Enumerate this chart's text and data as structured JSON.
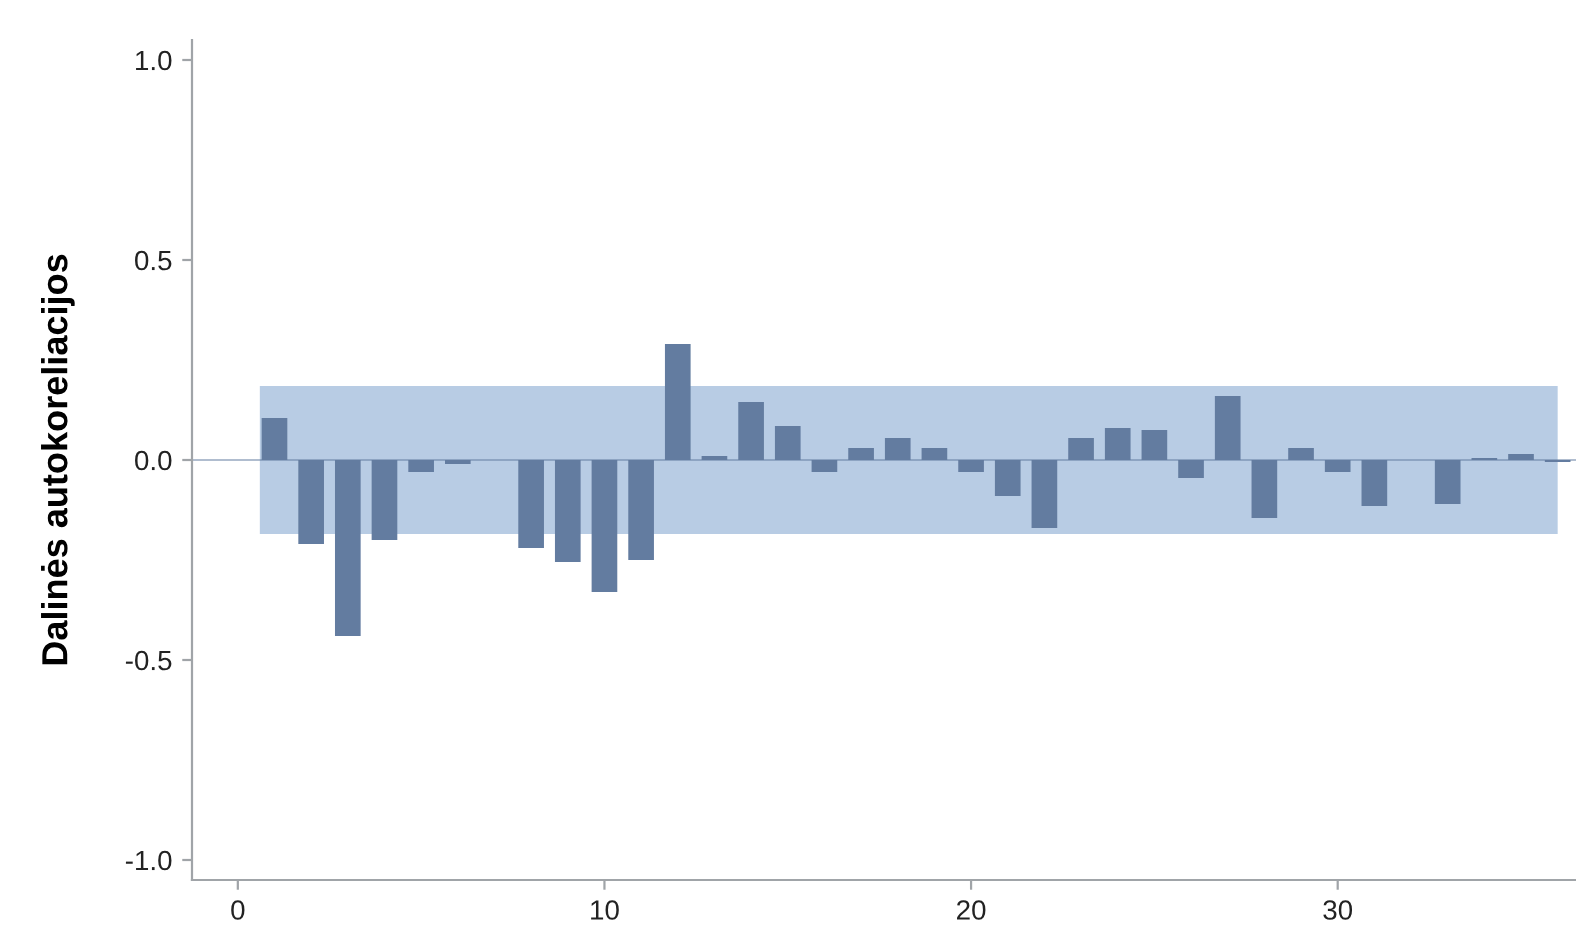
{
  "chart_data": {
    "type": "bar",
    "ylabel": "Dalinės autokoreliacijos",
    "x": [
      1,
      2,
      3,
      4,
      5,
      6,
      7,
      8,
      9,
      10,
      11,
      12,
      13,
      14,
      15,
      16,
      17,
      18,
      19,
      20,
      21,
      22,
      23,
      24,
      25,
      26,
      27,
      28,
      29,
      30,
      31,
      32,
      33,
      34,
      35,
      36
    ],
    "values": [
      0.105,
      -0.21,
      -0.44,
      -0.2,
      -0.03,
      -0.01,
      0,
      -0.22,
      -0.255,
      -0.33,
      -0.25,
      0.29,
      0.01,
      0.145,
      0.085,
      -0.03,
      0.03,
      0.055,
      0.03,
      -0.03,
      -0.09,
      -0.17,
      0.055,
      0.08,
      0.075,
      -0.045,
      0.16,
      -0.145,
      0.03,
      -0.03,
      -0.115,
      0,
      -0.11,
      0.005,
      0.015,
      -0.005
    ],
    "color": "#637ca0",
    "bands": [
      {
        "axis": "y",
        "from": -0.185,
        "to": 0.185,
        "color": "#b8cce4"
      }
    ],
    "ref_lines": [
      {
        "axis": "y",
        "value": 0,
        "color": "#637ca0"
      }
    ],
    "xlim": [
      -1.25,
      36.5
    ],
    "xticks": [
      0,
      10,
      20,
      30
    ],
    "ylim": [
      -1.05,
      1.05
    ],
    "yticks": [
      {
        "value": -1,
        "label": "-1.0"
      },
      {
        "value": -0.5,
        "label": "-0.5"
      },
      {
        "value": 0,
        "label": "0.0"
      },
      {
        "value": 0.5,
        "label": "0.5"
      },
      {
        "value": 1,
        "label": "1.0"
      }
    ],
    "grid": false,
    "legend": false
  }
}
